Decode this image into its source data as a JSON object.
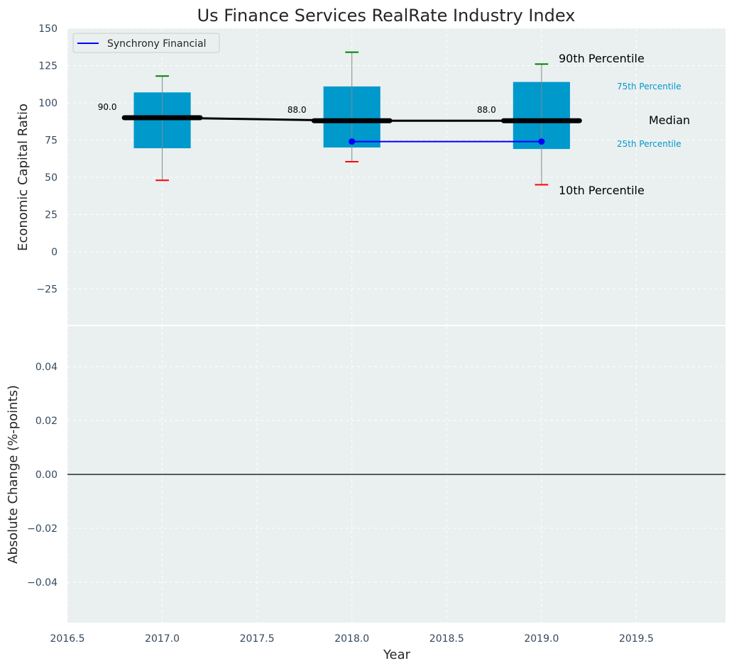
{
  "chart_data": [
    {
      "type": "box",
      "title": "Us Finance Services RealRate Industry Index",
      "ylabel": "Economic Capital Ratio",
      "xlim": [
        2016.5,
        2019.97
      ],
      "ylim": [
        -50,
        150
      ],
      "grid": true,
      "legend_position": "top-left",
      "x_ticks": [
        "2016.5",
        "2017.0",
        "2017.5",
        "2018.0",
        "2018.5",
        "2019.0",
        "2019.5"
      ],
      "y_ticks": [
        -25,
        0,
        25,
        50,
        75,
        100,
        125,
        150
      ],
      "y_tick_labels": [
        "−25",
        "0",
        "25",
        "50",
        "75",
        "100",
        "125",
        "150"
      ],
      "boxes": [
        {
          "x": 2017,
          "p10": 48,
          "p25": 69.5,
          "median": 90,
          "p75": 107,
          "p90": 118,
          "median_label": "90.0"
        },
        {
          "x": 2018,
          "p10": 60.5,
          "p25": 70,
          "median": 88,
          "p75": 111,
          "p90": 134,
          "median_label": "88.0"
        },
        {
          "x": 2019,
          "p10": 45,
          "p25": 69,
          "median": 88,
          "p75": 114,
          "p90": 126,
          "median_label": "88.0"
        }
      ],
      "series": [
        {
          "name": "Synchrony Financial",
          "x": [
            2018,
            2019
          ],
          "values": [
            74,
            74
          ],
          "color": "#0000ff"
        }
      ],
      "annotations": {
        "p90": "90th Percentile",
        "p75": "75th Percentile",
        "median": "Median",
        "p25": "25th Percentile",
        "p10": "10th Percentile"
      },
      "colors": {
        "box": "#0099cc",
        "median": "#000000",
        "p90_cap": "#008000",
        "p10_cap": "#ff0000",
        "background": "#eaeff0"
      }
    },
    {
      "type": "line",
      "xlabel": "Year",
      "ylabel": "Absolute Change (%-points)",
      "xlim": [
        2016.5,
        2019.97
      ],
      "ylim": [
        -0.055,
        0.055
      ],
      "grid": true,
      "x_ticks": [
        "2016.5",
        "2017.0",
        "2017.5",
        "2018.0",
        "2018.5",
        "2019.0",
        "2019.5"
      ],
      "y_ticks": [
        -0.04,
        -0.02,
        0.0,
        0.02,
        0.04
      ],
      "y_tick_labels": [
        "−0.04",
        "−0.02",
        "0.00",
        "0.02",
        "0.04"
      ],
      "hline": 0
    }
  ]
}
